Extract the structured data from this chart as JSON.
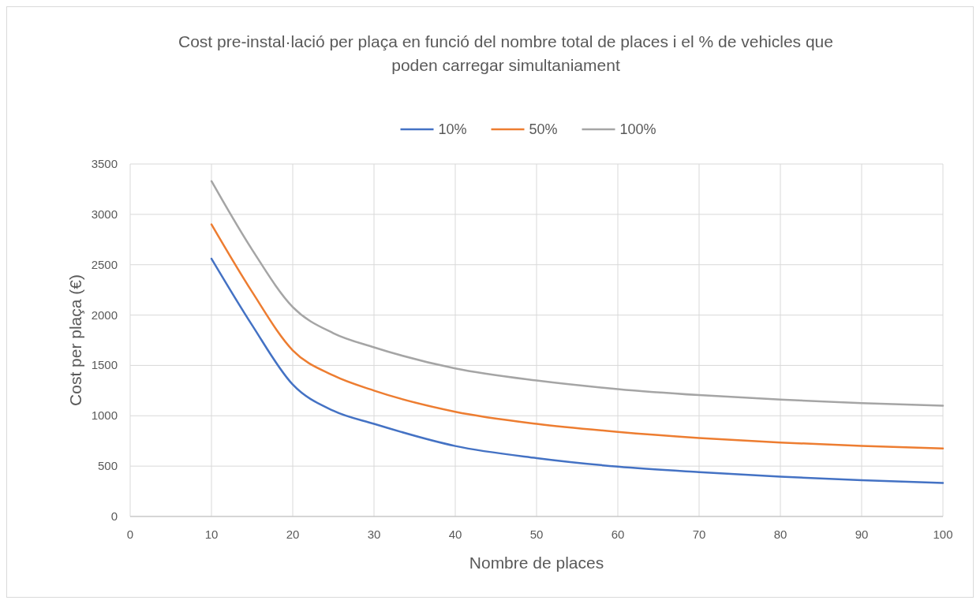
{
  "chart_data": {
    "type": "line",
    "title": "Cost pre-instal·lació per plaça en funció del nombre total de places i el % de vehicles que poden carregar simultaniament",
    "xlabel": "Nombre de places",
    "ylabel": "Cost per plaça (€)",
    "x": [
      10,
      15,
      20,
      25,
      30,
      40,
      50,
      60,
      70,
      80,
      90,
      100
    ],
    "series": [
      {
        "name": "10%",
        "color": "#4472c4",
        "values": [
          2560,
          1900,
          1310,
          1050,
          920,
          700,
          580,
          495,
          440,
          395,
          360,
          333
        ]
      },
      {
        "name": "50%",
        "color": "#ed7d31",
        "values": [
          2900,
          2230,
          1650,
          1400,
          1250,
          1040,
          920,
          840,
          780,
          735,
          700,
          675
        ]
      },
      {
        "name": "100%",
        "color": "#a5a5a5",
        "values": [
          3330,
          2650,
          2080,
          1820,
          1680,
          1470,
          1350,
          1265,
          1205,
          1160,
          1125,
          1100
        ]
      }
    ],
    "xlim": [
      0,
      100
    ],
    "xticks": [
      0,
      10,
      20,
      30,
      40,
      50,
      60,
      70,
      80,
      90,
      100
    ],
    "ylim": [
      0,
      3500
    ],
    "yticks": [
      0,
      500,
      1000,
      1500,
      2000,
      2500,
      3000,
      3500
    ],
    "grid": true,
    "legend": "top",
    "marker": "none",
    "line_style": "solid"
  }
}
